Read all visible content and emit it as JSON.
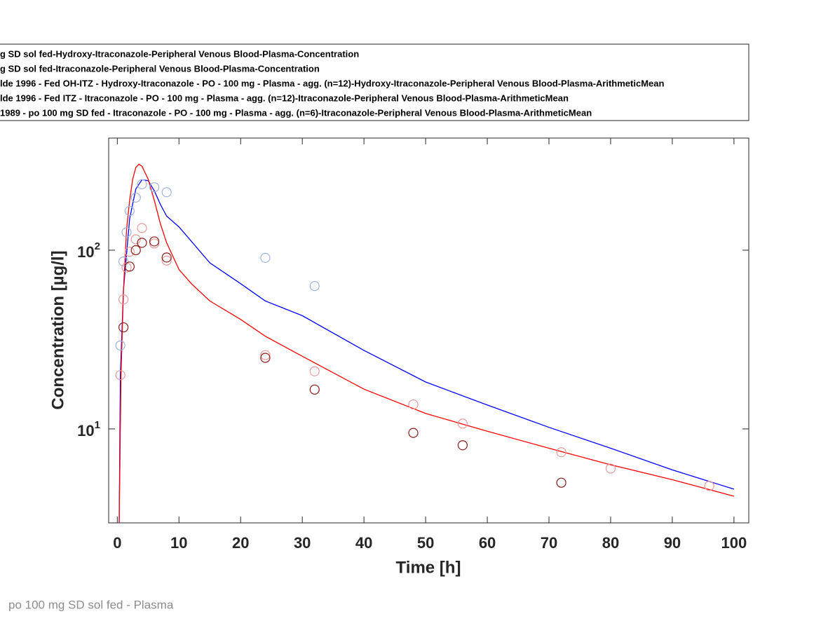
{
  "chart_data": {
    "type": "line",
    "footnote": "po 100 mg SD  sol fed - Plasma",
    "xlabel": "Time [h]",
    "ylabel": "Concentration [µg/l]",
    "xlim": [
      -1.4,
      102.4
    ],
    "ylim": [
      2.98,
      424
    ],
    "log_y": true,
    "box": true,
    "xticks": [
      0,
      10,
      20,
      30,
      40,
      50,
      60,
      70,
      80,
      90,
      100
    ],
    "yticks": [
      {
        "value": 10,
        "label": "10^1"
      },
      {
        "value": 100,
        "label": "10^2"
      }
    ],
    "series": [
      {
        "name": "g SD  sol fed-Hydroxy-Itraconazole-Peripheral Venous Blood-Plasma-Concentration",
        "style": "line",
        "color": "#0000ff",
        "x": [
          0.3,
          0.5,
          1,
          2,
          3,
          4,
          5,
          6,
          7,
          8,
          10,
          15,
          20,
          24,
          30,
          40,
          50,
          60,
          70,
          80,
          90,
          100
        ],
        "values": [
          3,
          20,
          60,
          150,
          220,
          248,
          245,
          215,
          180,
          155,
          135,
          85,
          65,
          52,
          43,
          27.5,
          18.3,
          13.6,
          10.2,
          7.8,
          5.9,
          4.6
        ]
      },
      {
        "name": "g SD  sol fed-Itraconazole-Peripheral Venous Blood-Plasma-Concentration",
        "style": "line",
        "color": "#ff0000",
        "x": [
          0.3,
          0.6,
          1,
          1.5,
          2,
          2.5,
          3,
          3.5,
          4,
          5,
          6,
          7,
          8,
          10,
          12,
          15,
          20,
          24,
          30,
          40,
          50,
          60,
          70,
          80,
          90,
          100
        ],
        "values": [
          3,
          20,
          60,
          130,
          190,
          250,
          290,
          303,
          295,
          250,
          190,
          140,
          110,
          78,
          65,
          52,
          41,
          33,
          25.5,
          16.7,
          12.2,
          9.7,
          7.8,
          6.3,
          5.2,
          4.2
        ]
      },
      {
        "name": "lde 1996 - Fed OH-ITZ - Hydroxy-Itraconazole - PO - 100 mg - Plasma - agg. (n=12)-Hydroxy-Itraconazole-Peripheral Venous Blood-Plasma-ArithmeticMean",
        "style": "marker",
        "color": "#9db3dd",
        "x": [
          0.5,
          1,
          1.5,
          2,
          3,
          4,
          6,
          8,
          24,
          32
        ],
        "values": [
          29.3,
          86.5,
          126,
          166,
          197,
          234,
          225,
          211,
          90.6,
          63
        ]
      },
      {
        "name": "lde 1996 - Fed ITZ - Itraconazole - PO - 100 mg - Plasma - agg. (n=12)-Itraconazole-Peripheral Venous Blood-Plasma-ArithmeticMean",
        "style": "marker",
        "color": "#e8999b",
        "x": [
          0.5,
          1,
          1.5,
          2,
          3,
          4,
          6,
          8,
          24,
          32,
          48,
          56,
          72,
          80,
          96
        ],
        "values": [
          20,
          53,
          80,
          98,
          115,
          133,
          109,
          87.5,
          25.9,
          21,
          13.7,
          10.7,
          7.4,
          6,
          4.8
        ]
      },
      {
        "name": "1989 - po 100 mg SD fed - Itraconazole - PO - 100 mg - Plasma - agg. (n=6)-Itraconazole-Peripheral Venous Blood-Plasma-ArithmeticMean",
        "style": "marker",
        "color": "#8b1a1a",
        "x": [
          1,
          2,
          3,
          4,
          6,
          8,
          24,
          32,
          48,
          56,
          72
        ],
        "values": [
          37,
          81,
          100,
          110,
          112,
          91,
          25,
          16.6,
          9.5,
          8.1,
          5
        ]
      }
    ]
  }
}
